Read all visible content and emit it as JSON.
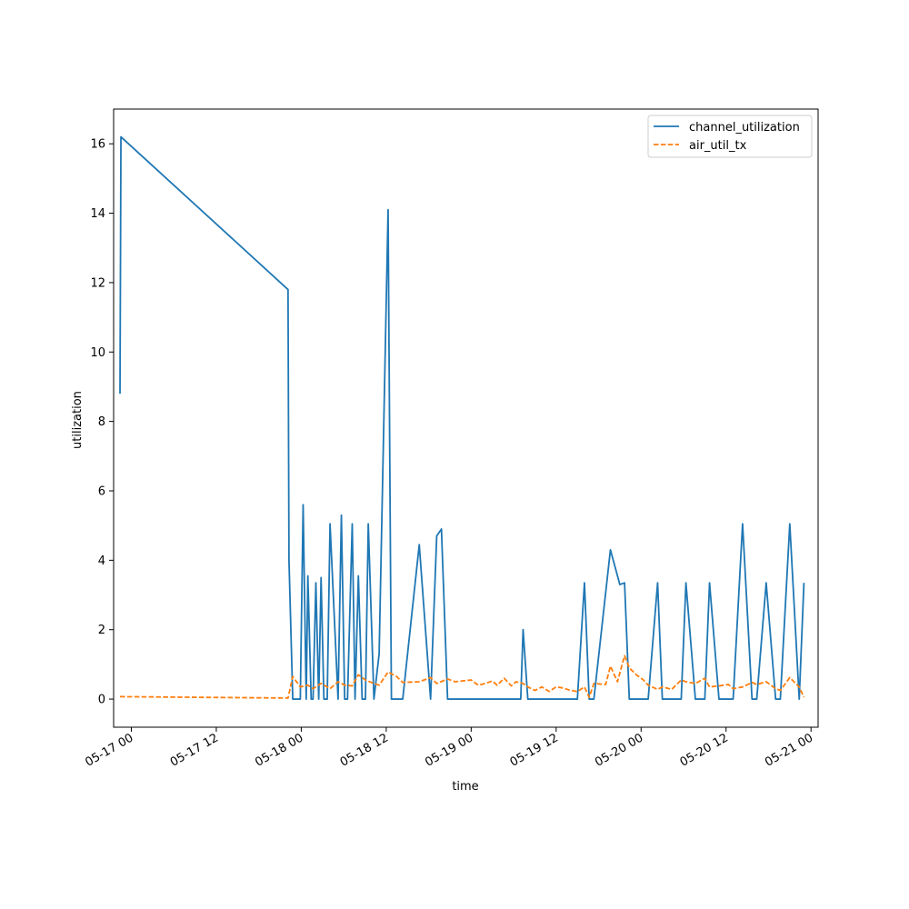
{
  "chart_data": {
    "type": "line",
    "xlabel": "time",
    "ylabel": "utilization",
    "x_ticks": [
      "2024-05-17T00:00",
      "2024-05-17T12:00",
      "2024-05-18T00:00",
      "2024-05-18T12:00",
      "2024-05-19T00:00",
      "2024-05-19T12:00",
      "2024-05-20T00:00",
      "2024-05-20T12:00",
      "2024-05-21T00:00"
    ],
    "x_tick_labels": [
      "05-17 00",
      "05-17 12",
      "05-18 00",
      "05-18 12",
      "05-19 00",
      "05-19 12",
      "05-20 00",
      "05-20 12",
      "05-21 00"
    ],
    "y_ticks": [
      0,
      2,
      4,
      6,
      8,
      10,
      12,
      14,
      16
    ],
    "xlim": [
      "2024-05-16T21:30",
      "2024-05-21T01:00"
    ],
    "ylim": [
      -0.81,
      17.0
    ],
    "grid": false,
    "legend_position": "top-right",
    "series": [
      {
        "name": "channel_utilization",
        "style": "solid",
        "color": "#1f77b4",
        "x": [
          "2024-05-16T22:24",
          "2024-05-16T22:32",
          "2024-05-17T22:08",
          "2024-05-17T22:16",
          "2024-05-17T22:48",
          "2024-05-17T23:52",
          "2024-05-18T00:16",
          "2024-05-18T00:42",
          "2024-05-18T00:56",
          "2024-05-18T01:24",
          "2024-05-18T01:40",
          "2024-05-18T02:04",
          "2024-05-18T02:28",
          "2024-05-18T02:48",
          "2024-05-18T03:12",
          "2024-05-18T03:40",
          "2024-05-18T04:04",
          "2024-05-18T05:12",
          "2024-05-18T05:40",
          "2024-05-18T06:08",
          "2024-05-18T06:32",
          "2024-05-18T07:12",
          "2024-05-18T07:36",
          "2024-05-18T08:04",
          "2024-05-18T08:36",
          "2024-05-18T09:04",
          "2024-05-18T09:28",
          "2024-05-18T10:16",
          "2024-05-18T11:00",
          "2024-05-18T12:16",
          "2024-05-18T12:44",
          "2024-05-18T13:28",
          "2024-05-18T13:50",
          "2024-05-18T14:20",
          "2024-05-18T16:40",
          "2024-05-18T18:16",
          "2024-05-18T19:08",
          "2024-05-18T19:48",
          "2024-05-18T20:40",
          "2024-05-18T21:12",
          "2024-05-18T21:44",
          "2024-05-19T02:00",
          "2024-05-19T03:40",
          "2024-05-19T06:20",
          "2024-05-19T07:00",
          "2024-05-19T07:20",
          "2024-05-19T08:00",
          "2024-05-19T09:00",
          "2024-05-19T10:00",
          "2024-05-19T11:00",
          "2024-05-19T12:00",
          "2024-05-19T13:00",
          "2024-05-19T14:00",
          "2024-05-19T15:00",
          "2024-05-19T16:00",
          "2024-05-19T16:40",
          "2024-05-19T17:20",
          "2024-05-19T19:40",
          "2024-05-19T21:00",
          "2024-05-19T21:40",
          "2024-05-19T22:20",
          "2024-05-19T23:20",
          "2024-05-20T01:00",
          "2024-05-20T02:20",
          "2024-05-20T03:00",
          "2024-05-20T04:20",
          "2024-05-20T05:40",
          "2024-05-20T06:20",
          "2024-05-20T07:40",
          "2024-05-20T09:00",
          "2024-05-20T09:40",
          "2024-05-20T11:00",
          "2024-05-20T12:20",
          "2024-05-20T13:00",
          "2024-05-20T14:20",
          "2024-05-20T15:40",
          "2024-05-20T16:20",
          "2024-05-20T17:40",
          "2024-05-20T19:00",
          "2024-05-20T19:40",
          "2024-05-20T21:00",
          "2024-05-20T22:20",
          "2024-05-20T23:00"
        ],
        "y": [
          8.8,
          16.2,
          11.8,
          4.0,
          0.0,
          0.0,
          5.6,
          0.0,
          3.55,
          0.0,
          0.0,
          3.35,
          0.0,
          3.5,
          0.0,
          0.0,
          5.05,
          0.0,
          5.3,
          0.0,
          0.0,
          5.05,
          0.0,
          3.55,
          0.0,
          0.0,
          5.05,
          0.0,
          1.3,
          14.1,
          0.0,
          0.0,
          0.0,
          0.0,
          4.45,
          0.0,
          4.7,
          4.9,
          0.0,
          0.0,
          0.0,
          0.0,
          0.0,
          0.0,
          0.0,
          2.0,
          0.0,
          0.0,
          0.0,
          0.0,
          0.0,
          0.0,
          0.0,
          0.0,
          3.35,
          0.0,
          0.0,
          4.3,
          3.3,
          3.35,
          0.0,
          0.0,
          0.0,
          3.35,
          0.0,
          0.0,
          0.0,
          3.35,
          0.0,
          0.0,
          3.35,
          0.0,
          0.0,
          0.0,
          5.05,
          0.0,
          0.0,
          3.35,
          0.0,
          0.0,
          5.05,
          0.0,
          3.35
        ]
      },
      {
        "name": "air_util_tx",
        "style": "dashed",
        "color": "#ff7f0e",
        "x": [
          "2024-05-16T22:24",
          "2024-05-17T22:08",
          "2024-05-17T22:48",
          "2024-05-17T23:52",
          "2024-05-18T00:56",
          "2024-05-18T01:40",
          "2024-05-18T02:48",
          "2024-05-18T03:40",
          "2024-05-18T04:04",
          "2024-05-18T05:12",
          "2024-05-18T06:08",
          "2024-05-18T07:12",
          "2024-05-18T08:04",
          "2024-05-18T09:04",
          "2024-05-18T10:16",
          "2024-05-18T11:00",
          "2024-05-18T12:16",
          "2024-05-18T13:28",
          "2024-05-18T14:20",
          "2024-05-18T16:40",
          "2024-05-18T18:16",
          "2024-05-18T19:08",
          "2024-05-18T20:40",
          "2024-05-18T21:44",
          "2024-05-19T00:00",
          "2024-05-19T01:00",
          "2024-05-19T02:00",
          "2024-05-19T03:00",
          "2024-05-19T03:40",
          "2024-05-19T04:40",
          "2024-05-19T05:40",
          "2024-05-19T06:20",
          "2024-05-19T07:20",
          "2024-05-19T08:00",
          "2024-05-19T09:00",
          "2024-05-19T10:00",
          "2024-05-19T11:00",
          "2024-05-19T12:00",
          "2024-05-19T13:00",
          "2024-05-19T14:00",
          "2024-05-19T15:00",
          "2024-05-19T16:00",
          "2024-05-19T16:40",
          "2024-05-19T17:20",
          "2024-05-19T19:00",
          "2024-05-19T19:40",
          "2024-05-19T20:40",
          "2024-05-19T21:40",
          "2024-05-19T22:20",
          "2024-05-19T23:20",
          "2024-05-20T00:20",
          "2024-05-20T01:00",
          "2024-05-20T02:20",
          "2024-05-20T03:00",
          "2024-05-20T04:20",
          "2024-05-20T05:40",
          "2024-05-20T06:20",
          "2024-05-20T07:40",
          "2024-05-20T09:00",
          "2024-05-20T09:40",
          "2024-05-20T11:00",
          "2024-05-20T12:20",
          "2024-05-20T13:00",
          "2024-05-20T14:20",
          "2024-05-20T15:40",
          "2024-05-20T16:20",
          "2024-05-20T17:40",
          "2024-05-20T19:00",
          "2024-05-20T19:40",
          "2024-05-20T21:00",
          "2024-05-20T22:20",
          "2024-05-20T23:00"
        ],
        "y": [
          0.07,
          0.03,
          0.65,
          0.35,
          0.4,
          0.3,
          0.45,
          0.35,
          0.3,
          0.5,
          0.4,
          0.38,
          0.7,
          0.55,
          0.45,
          0.4,
          0.78,
          0.65,
          0.48,
          0.5,
          0.62,
          0.45,
          0.58,
          0.5,
          0.55,
          0.4,
          0.45,
          0.52,
          0.4,
          0.6,
          0.38,
          0.5,
          0.45,
          0.35,
          0.25,
          0.35,
          0.22,
          0.35,
          0.32,
          0.25,
          0.22,
          0.35,
          0.05,
          0.45,
          0.42,
          0.95,
          0.5,
          1.25,
          0.9,
          0.7,
          0.55,
          0.4,
          0.28,
          0.35,
          0.28,
          0.55,
          0.5,
          0.45,
          0.6,
          0.35,
          0.38,
          0.42,
          0.3,
          0.35,
          0.48,
          0.42,
          0.5,
          0.3,
          0.25,
          0.62,
          0.35,
          0.05
        ]
      }
    ]
  }
}
